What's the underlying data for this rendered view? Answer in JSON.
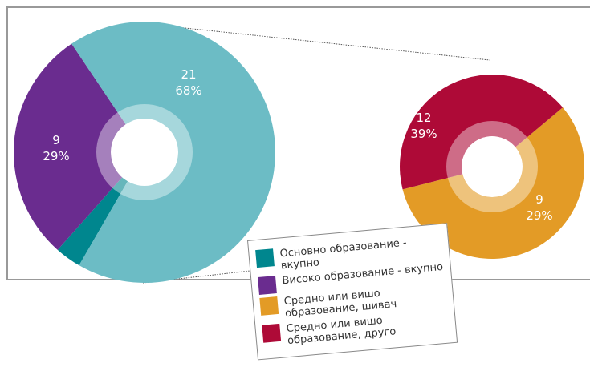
{
  "chart_data": [
    {
      "type": "donut",
      "categories": [
        "Основно образование - вкупно",
        "Високо образование - вкупно",
        null
      ],
      "values": [
        1,
        9,
        21
      ],
      "percent_labels": [
        null,
        "29%",
        "68%"
      ],
      "colors": [
        "#00868e",
        "#6a2c8f",
        "#6cbcc5"
      ]
    },
    {
      "type": "donut",
      "categories": [
        "Средно или вишо образование, шивач",
        "Средно или вишо образование, друго"
      ],
      "values": [
        12,
        9
      ],
      "percent_labels": [
        "39%",
        "29%"
      ],
      "colors": [
        "#e39b26",
        "#ae0a37"
      ]
    }
  ]
}
